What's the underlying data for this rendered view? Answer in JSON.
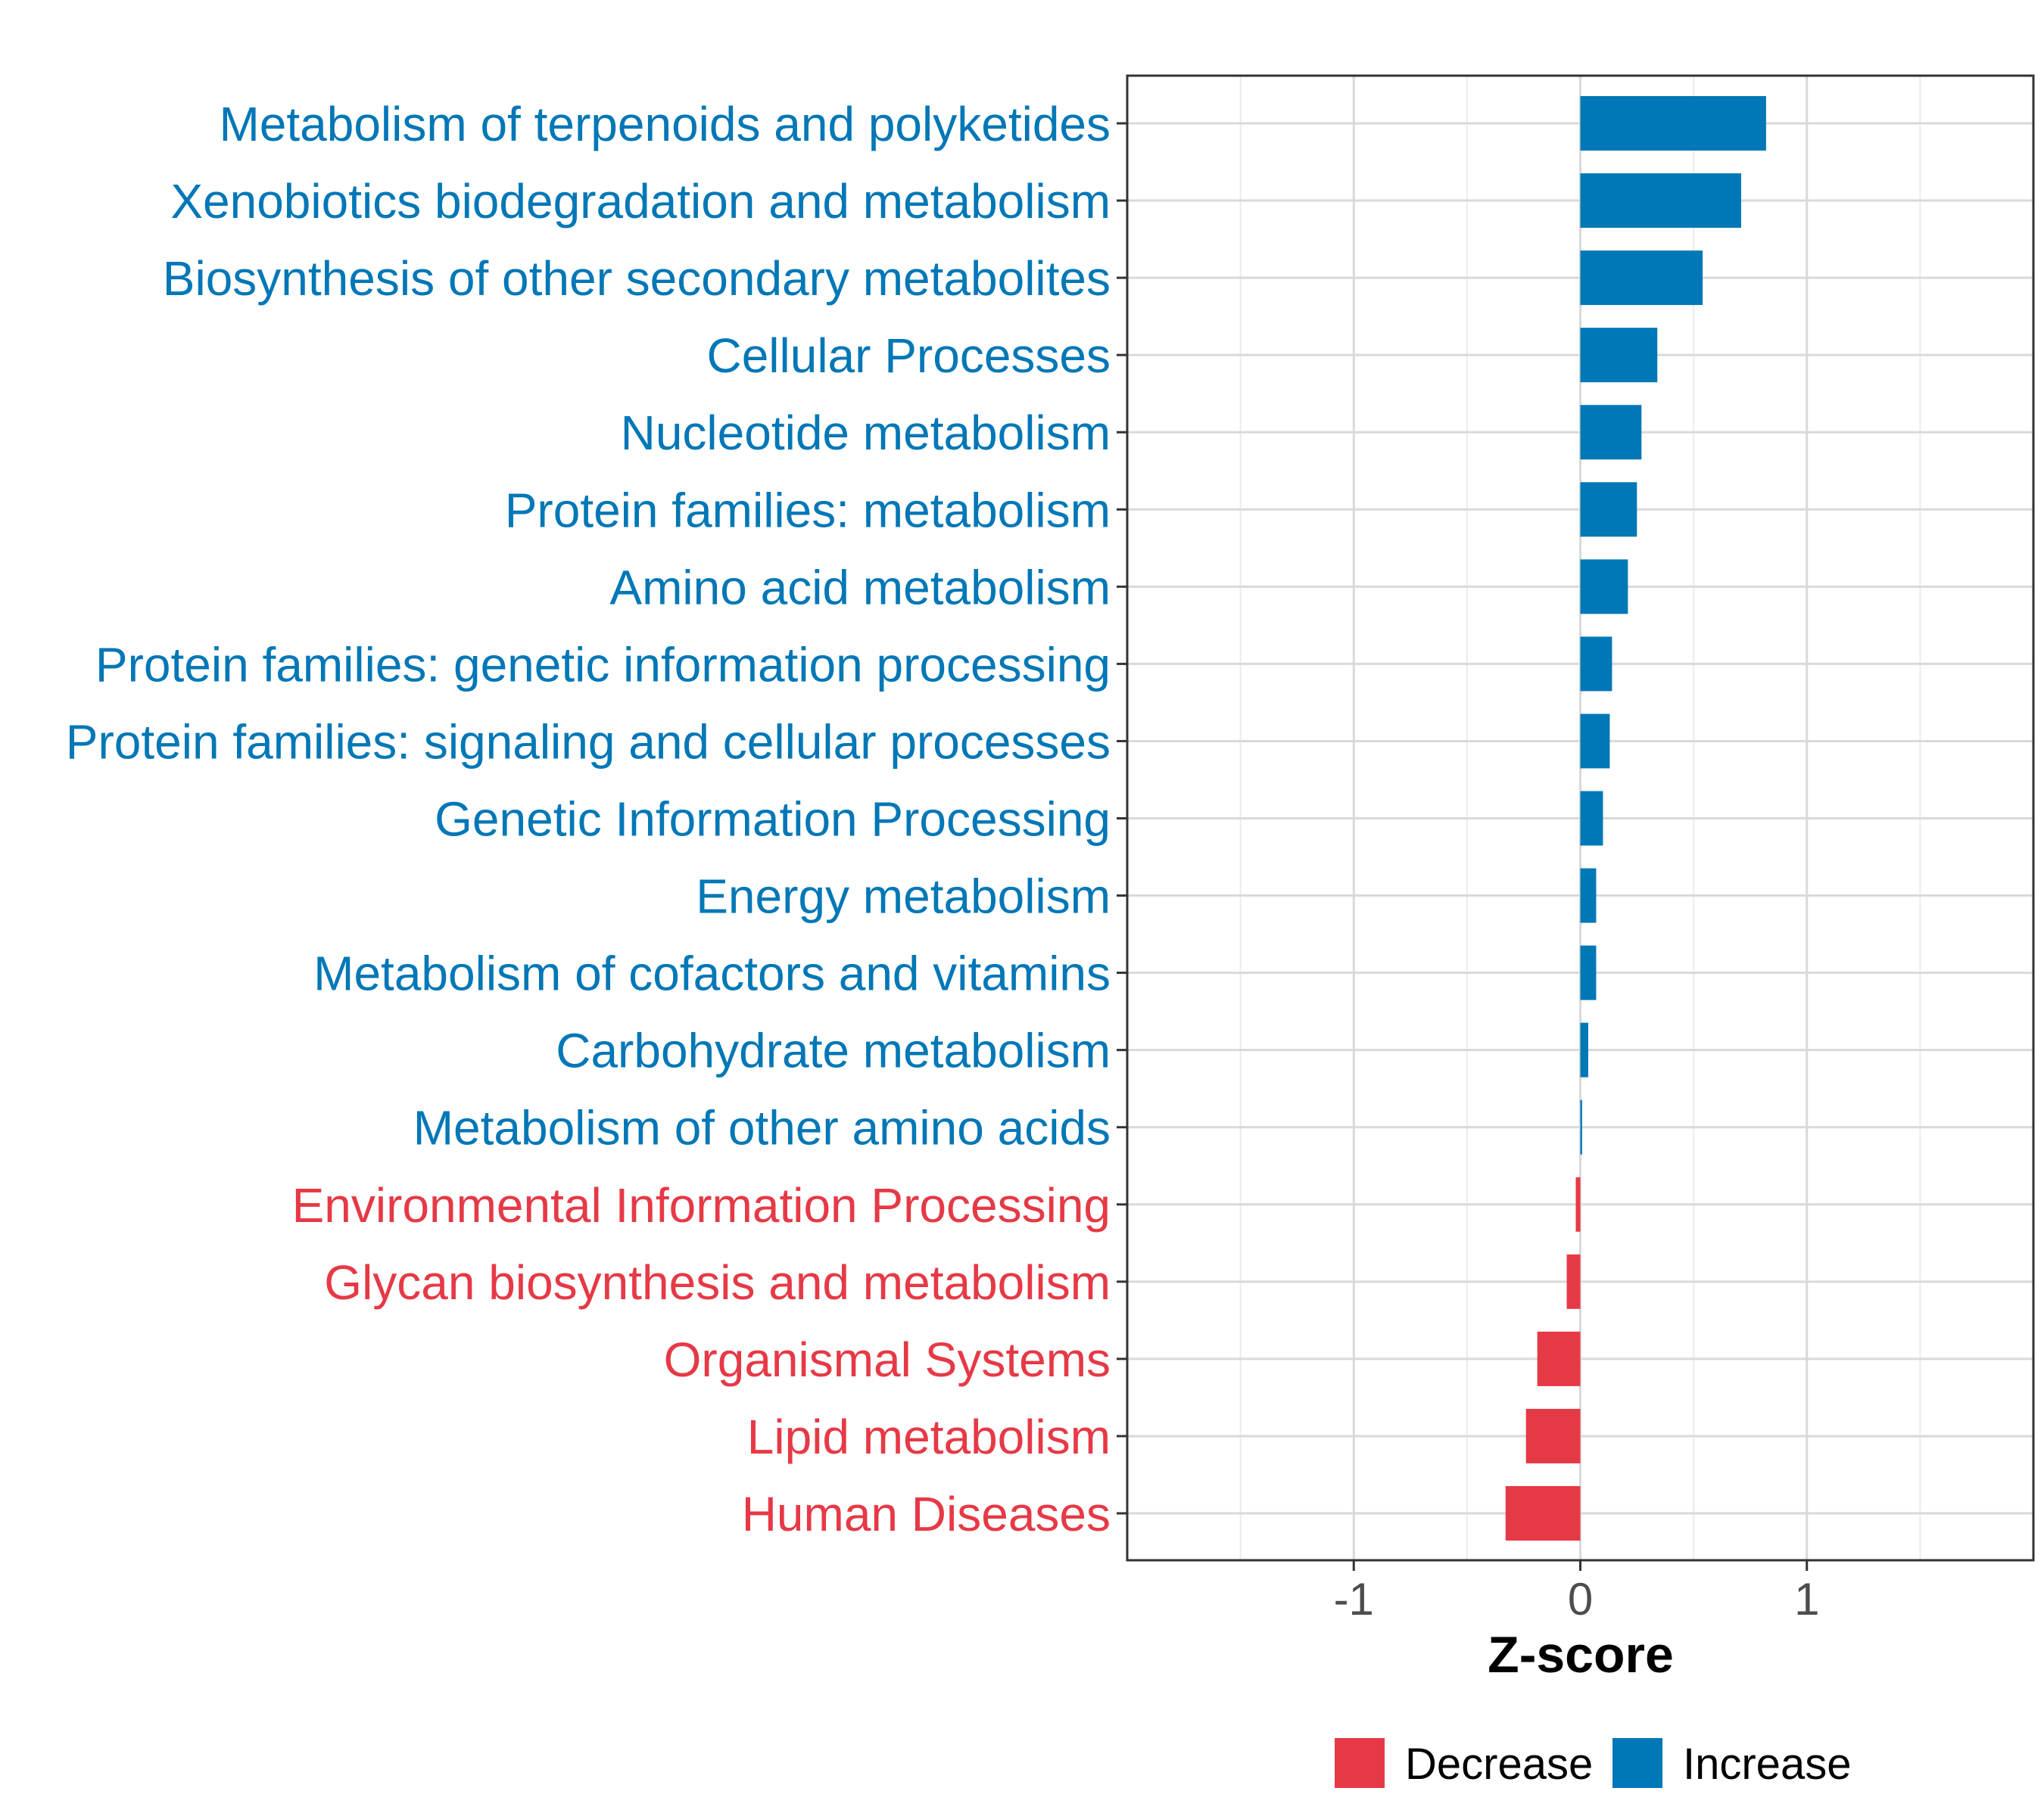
{
  "chart_data": {
    "type": "bar",
    "orientation": "horizontal",
    "categories": [
      "Metabolism of terpenoids and polyketides",
      "Xenobiotics biodegradation and metabolism",
      "Biosynthesis of other secondary metabolites",
      "Cellular Processes",
      "Nucleotide metabolism",
      "Protein families: metabolism",
      "Amino acid metabolism",
      "Protein families: genetic information processing",
      "Protein families: signaling and cellular processes",
      "Genetic Information Processing",
      "Energy metabolism",
      "Metabolism of cofactors and vitamins",
      "Carbohydrate metabolism",
      "Metabolism of other amino acids",
      "Environmental Information Processing",
      "Glycan biosynthesis and metabolism",
      "Organismal Systems",
      "Lipid metabolism",
      "Human Diseases"
    ],
    "values": [
      0.82,
      0.71,
      0.54,
      0.34,
      0.27,
      0.25,
      0.21,
      0.14,
      0.13,
      0.1,
      0.07,
      0.07,
      0.035,
      0.008,
      -0.02,
      -0.06,
      -0.19,
      -0.24,
      -0.33
    ],
    "groups": [
      "Increase",
      "Increase",
      "Increase",
      "Increase",
      "Increase",
      "Increase",
      "Increase",
      "Increase",
      "Increase",
      "Increase",
      "Increase",
      "Increase",
      "Increase",
      "Increase",
      "Decrease",
      "Decrease",
      "Decrease",
      "Decrease",
      "Decrease"
    ],
    "xlabel": "Z-score",
    "ylabel": "",
    "xlim": [
      -2.0,
      2.0
    ],
    "xticks": [
      -1,
      0,
      1
    ],
    "xtick_labels": [
      "-1",
      "0",
      "1"
    ],
    "grid": true,
    "legend": {
      "position": "bottom",
      "entries": [
        {
          "label": "Decrease",
          "color": "#E63946"
        },
        {
          "label": "Increase",
          "color": "#0077B6"
        }
      ]
    }
  }
}
